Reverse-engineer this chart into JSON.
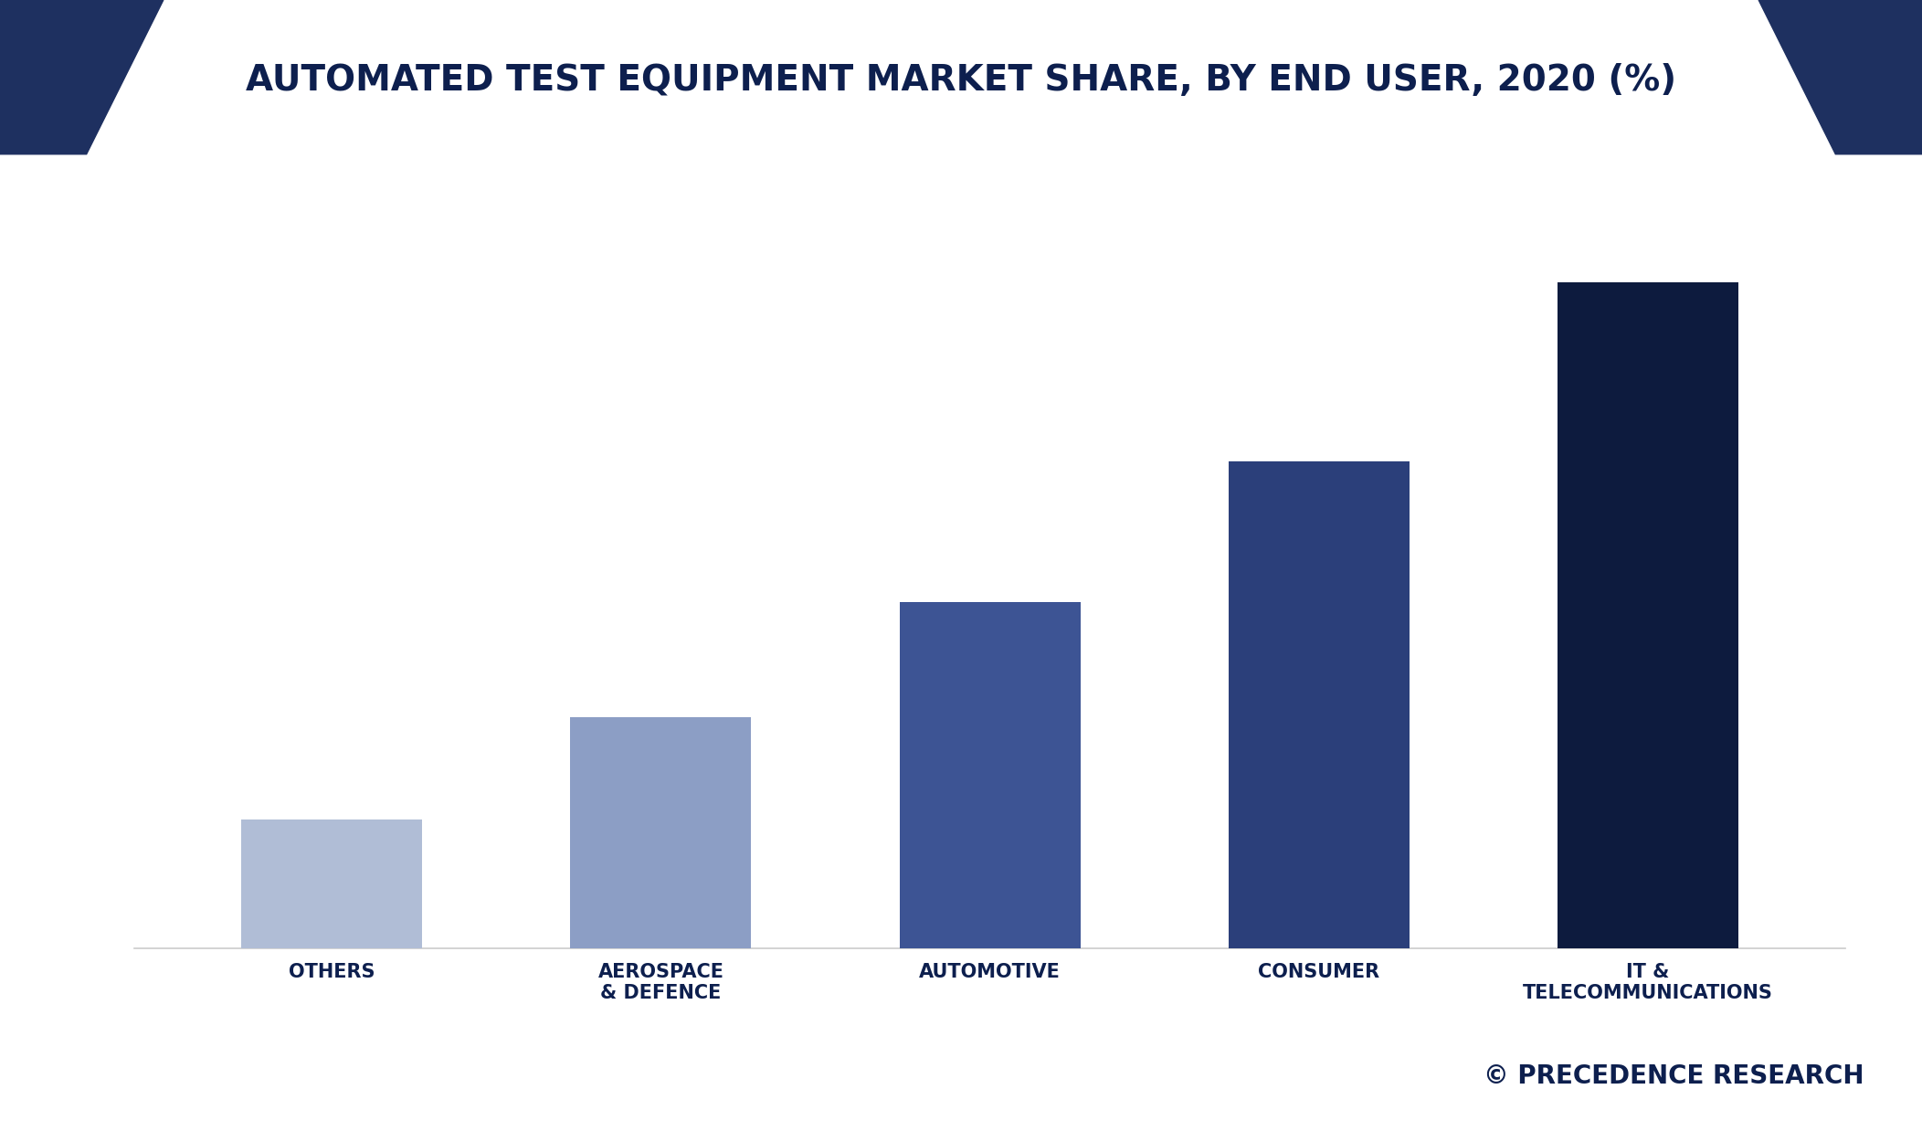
{
  "title": "AUTOMATED TEST EQUIPMENT MARKET SHARE, BY END USER, 2020 (%)",
  "title_color": "#0d1f4e",
  "title_fontsize": 28,
  "background_color": "#ffffff",
  "footer_bg_color": "#f5f2e8",
  "categories": [
    "OTHERS",
    "AEROSPACE\n& DEFENCE",
    "AUTOMOTIVE",
    "CONSUMER",
    "IT &\nTELECOMMUNICATIONS"
  ],
  "values": [
    10,
    18,
    27,
    38,
    52
  ],
  "bar_colors": [
    "#b0bdd6",
    "#8c9ec5",
    "#3d5494",
    "#2b3f7a",
    "#0d1b3e"
  ],
  "bar_width": 0.55,
  "xlabel_fontsize": 15,
  "tick_color": "#0d1f4e",
  "watermark": "© PRECEDENCE RESEARCH",
  "watermark_fontsize": 20,
  "watermark_color": "#0d1f4e",
  "triangle_color": "#1e3060",
  "bottom_bar_color": "#0d1b3e",
  "spine_color": "#cccccc"
}
